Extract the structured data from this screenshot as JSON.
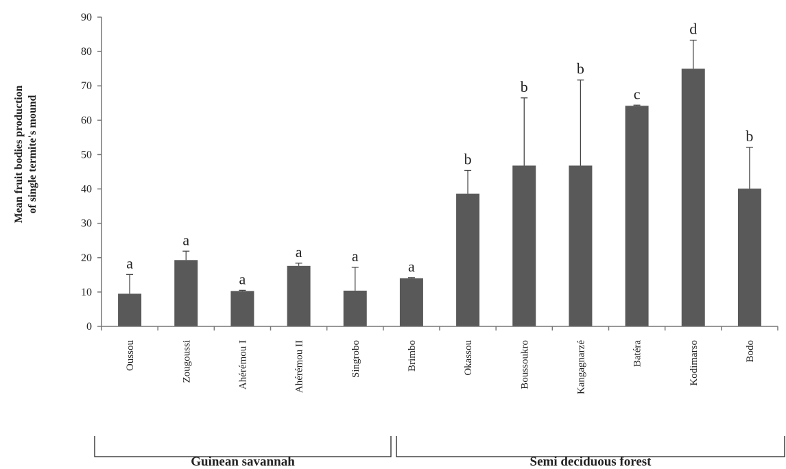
{
  "chart_data": {
    "type": "bar",
    "ylabel": [
      "Mean fruit bodies production",
      "of single termite's mound"
    ],
    "xlabel": "",
    "ylim": [
      0,
      90
    ],
    "yticks": [
      0,
      10,
      20,
      30,
      40,
      50,
      60,
      70,
      80,
      90
    ],
    "grid": false,
    "categories": [
      "Oussou",
      "Zougoussi",
      "Ahérémou I",
      "Ahérémou II",
      "Singrobo",
      "Brimbo",
      "Okassou",
      "Boussoukro",
      "Kangagnarzé",
      "Batéra",
      "Kodimarso",
      "Bodo"
    ],
    "values": [
      9.5,
      19.3,
      10.3,
      17.6,
      10.4,
      14.0,
      38.6,
      46.8,
      46.8,
      64.2,
      75.0,
      40.1
    ],
    "errors": [
      5.6,
      2.6,
      0.2,
      0.8,
      6.8,
      0.2,
      6.8,
      19.7,
      24.9,
      0.2,
      8.3,
      12.0
    ],
    "significance": [
      "a",
      "a",
      "a",
      "a",
      "a",
      "a",
      "b",
      "b",
      "b",
      "c",
      "d",
      "b"
    ],
    "groups": [
      {
        "name": "Guinean savannah",
        "categories": [
          "Oussou",
          "Zougoussi",
          "Ahérémou I",
          "Ahérémou II",
          "Singrobo"
        ]
      },
      {
        "name": "Semi deciduous forest",
        "categories": [
          "Brimbo",
          "Okassou",
          "Boussoukro",
          "Kangagnarzé",
          "Batéra",
          "Kodimarso",
          "Bodo"
        ]
      }
    ],
    "colors": {
      "bar": "#595959",
      "axis": "#777777"
    }
  }
}
